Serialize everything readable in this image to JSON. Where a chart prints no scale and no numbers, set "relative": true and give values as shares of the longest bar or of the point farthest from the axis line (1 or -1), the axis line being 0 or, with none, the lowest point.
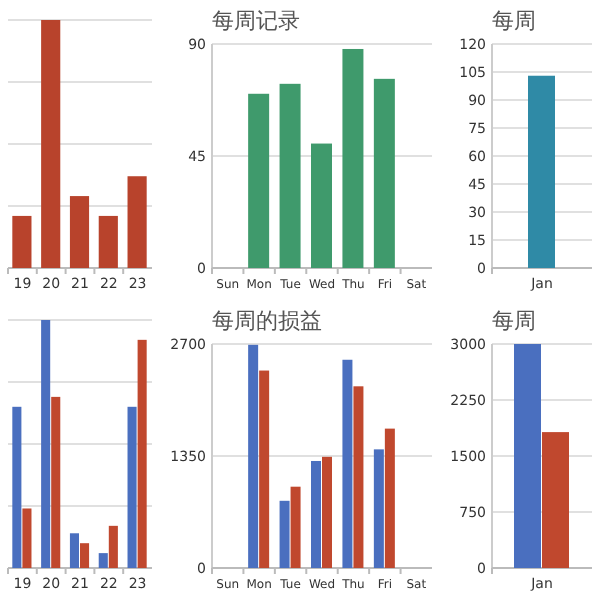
{
  "chart_data": [
    {
      "type": "bar",
      "relative": true,
      "grid": "y",
      "categories": [
        "19",
        "20",
        "21",
        "22",
        "23"
      ],
      "values": [
        0.21,
        1,
        0.29,
        0.21,
        0.37
      ],
      "color": "#b8432c"
    },
    {
      "type": "bar",
      "title": "每周记录",
      "grid": "y",
      "categories": [
        "Sun",
        "Mon",
        "Tue",
        "Wed",
        "Thu",
        "Fri",
        "Sat"
      ],
      "values": [
        null,
        70,
        74,
        50,
        88,
        76,
        null
      ],
      "color": "#3f9a6c",
      "ylim": [
        0,
        90
      ],
      "yticks": [
        0,
        45,
        90
      ]
    },
    {
      "type": "bar",
      "title": "每周",
      "grid": "y",
      "categories": [
        "Jan"
      ],
      "values": [
        103
      ],
      "color": "#2f8aa6",
      "ylim": [
        0,
        120
      ],
      "yticks": [
        0,
        15,
        30,
        45,
        60,
        75,
        90,
        105,
        120
      ]
    },
    {
      "type": "bar",
      "relative": true,
      "grid": "y",
      "categories": [
        "19",
        "20",
        "21",
        "22",
        "23"
      ],
      "series": [
        {
          "color": "#4a6fbf",
          "values": [
            0.65,
            1,
            0.14,
            0.06,
            0.65
          ]
        },
        {
          "color": "#c0482e",
          "values": [
            0.24,
            0.69,
            0.1,
            0.17,
            0.92
          ]
        }
      ]
    },
    {
      "type": "bar",
      "title": "每周的损益",
      "grid": "y",
      "categories": [
        "Sun",
        "Mon",
        "Tue",
        "Wed",
        "Thu",
        "Fri",
        "Sat"
      ],
      "series": [
        {
          "color": "#4a6fbf",
          "values": [
            null,
            2690,
            810,
            1290,
            2510,
            1430,
            null
          ]
        },
        {
          "color": "#c0482e",
          "values": [
            null,
            2380,
            980,
            1340,
            2190,
            1680,
            null
          ]
        }
      ],
      "ylim": [
        0,
        2700
      ],
      "yticks": [
        0,
        1350,
        2700
      ]
    },
    {
      "type": "bar",
      "title": "每周",
      "grid": "y",
      "categories": [
        "Jan"
      ],
      "series": [
        {
          "color": "#4a6fbf",
          "values": [
            3000
          ]
        },
        {
          "color": "#c0482e",
          "values": [
            1820
          ]
        }
      ],
      "ylim": [
        0,
        3000
      ],
      "yticks": [
        0,
        750,
        1500,
        2250,
        3000
      ]
    }
  ]
}
